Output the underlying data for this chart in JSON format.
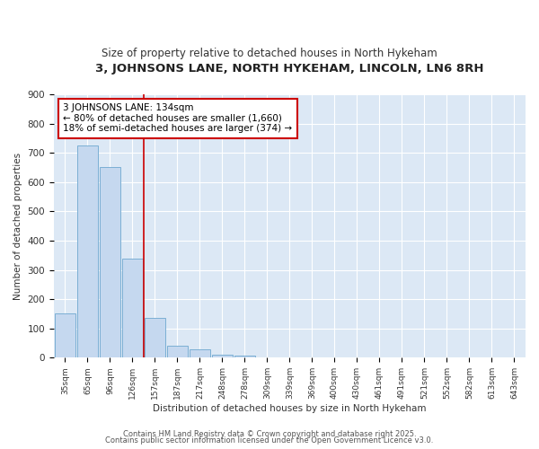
{
  "title": "3, JOHNSONS LANE, NORTH HYKEHAM, LINCOLN, LN6 8RH",
  "subtitle": "Size of property relative to detached houses in North Hykeham",
  "xlabel": "Distribution of detached houses by size in North Hykeham",
  "ylabel": "Number of detached properties",
  "bar_color": "#c5d8ef",
  "bar_edge_color": "#7bafd4",
  "plot_bg_color": "#dce8f5",
  "fig_bg_color": "#ffffff",
  "grid_color": "#ffffff",
  "categories": [
    "35sqm",
    "65sqm",
    "96sqm",
    "126sqm",
    "157sqm",
    "187sqm",
    "217sqm",
    "248sqm",
    "278sqm",
    "309sqm",
    "339sqm",
    "369sqm",
    "400sqm",
    "430sqm",
    "461sqm",
    "491sqm",
    "521sqm",
    "552sqm",
    "582sqm",
    "613sqm",
    "643sqm"
  ],
  "values": [
    150,
    725,
    650,
    340,
    135,
    42,
    30,
    10,
    8,
    0,
    0,
    0,
    0,
    0,
    0,
    0,
    0,
    0,
    0,
    0,
    0
  ],
  "red_line_x": 3.5,
  "annotation_text": "3 JOHNSONS LANE: 134sqm\n← 80% of detached houses are smaller (1,660)\n18% of semi-detached houses are larger (374) →",
  "annotation_box_color": "#ffffff",
  "annotation_border_color": "#cc0000",
  "ylim": [
    0,
    900
  ],
  "yticks": [
    0,
    100,
    200,
    300,
    400,
    500,
    600,
    700,
    800,
    900
  ],
  "footer_text1": "Contains HM Land Registry data © Crown copyright and database right 2025.",
  "footer_text2": "Contains public sector information licensed under the Open Government Licence v3.0."
}
